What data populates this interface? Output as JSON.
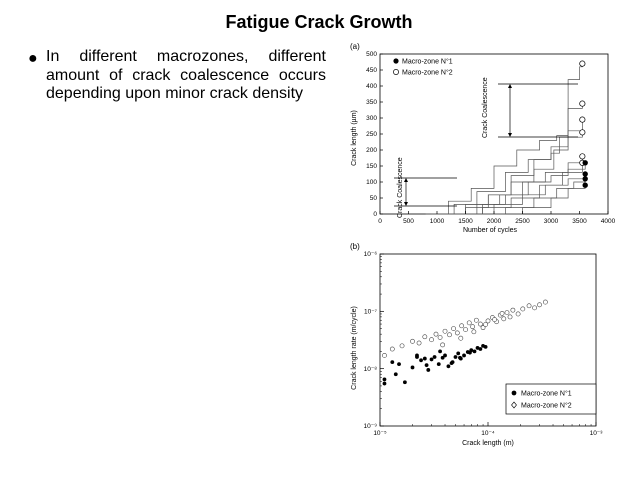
{
  "slide": {
    "title": "Fatigue Crack Growth",
    "bullet": "In different macrozones, different amount of crack coalescence occurs depending upon minor crack density"
  },
  "chart_data": [
    {
      "panel_label": "(a)",
      "type": "line",
      "xlabel": "Number of cycles",
      "ylabel": "Crack length (µm)",
      "xlim": [
        0,
        4000
      ],
      "ylim": [
        0,
        500
      ],
      "xticks": [
        "0",
        "500",
        "1000",
        "1500",
        "2000",
        "2500",
        "3000",
        "3500",
        "4000"
      ],
      "yticks": [
        "0",
        "50",
        "100",
        "150",
        "200",
        "250",
        "300",
        "350",
        "400",
        "450",
        "500"
      ],
      "legend": [
        {
          "label": "Macro-zone N°1",
          "marker": "filled-circle"
        },
        {
          "label": "Macro-zone N°2",
          "marker": "open-circle"
        }
      ],
      "annotations": [
        "Crack Coalescence",
        "Crack Coalescence"
      ],
      "series": [
        {
          "marker": "open",
          "x": [
            1100,
            1500,
            1900,
            2300,
            2700,
            3000,
            3150,
            3300,
            3500,
            3550
          ],
          "y": [
            0,
            30,
            60,
            120,
            170,
            190,
            240,
            420,
            460,
            470
          ]
        },
        {
          "marker": "open",
          "x": [
            800,
            1200,
            1600,
            2000,
            2400,
            2800,
            3100,
            3300,
            3550
          ],
          "y": [
            0,
            40,
            80,
            150,
            200,
            230,
            245,
            330,
            345
          ]
        },
        {
          "marker": "open",
          "x": [
            1000,
            1500,
            1900,
            2300,
            2700,
            3050,
            3300,
            3550
          ],
          "y": [
            0,
            20,
            60,
            100,
            140,
            200,
            260,
            295
          ]
        },
        {
          "marker": "open",
          "x": [
            900,
            1300,
            1700,
            2200,
            2600,
            3000,
            3300,
            3550
          ],
          "y": [
            0,
            30,
            70,
            130,
            170,
            210,
            240,
            255
          ]
        },
        {
          "marker": "open",
          "x": [
            1200,
            1700,
            2100,
            2500,
            2900,
            3300,
            3550
          ],
          "y": [
            0,
            30,
            60,
            100,
            130,
            160,
            180
          ]
        },
        {
          "marker": "open",
          "x": [
            1400,
            1800,
            2300,
            2800,
            3200,
            3550
          ],
          "y": [
            0,
            20,
            50,
            90,
            130,
            160
          ]
        },
        {
          "marker": "filled",
          "x": [
            1300,
            1800,
            2200,
            2600,
            3000,
            3300,
            3600
          ],
          "y": [
            0,
            30,
            60,
            100,
            120,
            140,
            160
          ]
        },
        {
          "marker": "filled",
          "x": [
            1500,
            2000,
            2500,
            2900,
            3300,
            3600
          ],
          "y": [
            0,
            30,
            60,
            90,
            110,
            125
          ]
        },
        {
          "marker": "filled",
          "x": [
            1700,
            2200,
            2700,
            3100,
            3400,
            3600
          ],
          "y": [
            0,
            20,
            50,
            80,
            100,
            110
          ]
        },
        {
          "marker": "filled",
          "x": [
            2000,
            2500,
            3000,
            3300,
            3600
          ],
          "y": [
            0,
            20,
            50,
            80,
            90
          ]
        }
      ]
    },
    {
      "panel_label": "(b)",
      "type": "scatter",
      "xlabel": "Crack length (m)",
      "ylabel": "Crack length rate (m/cycle)",
      "x_scale": "log",
      "y_scale": "log",
      "xlim": [
        1e-05,
        0.001
      ],
      "ylim": [
        1e-09,
        1e-06
      ],
      "xticks": [
        "10⁻⁵",
        "10⁻⁴",
        "10⁻³"
      ],
      "yticks": [
        "10⁻⁹",
        "10⁻⁸",
        "10⁻⁷",
        "10⁻⁶"
      ],
      "legend": [
        {
          "label": "Macro-zone N°1",
          "marker": "filled-circle"
        },
        {
          "label": "Macro-zone N°2",
          "marker": "open-diamond"
        }
      ],
      "series": [
        {
          "name": "Macro-zone N°1",
          "marker": "filled",
          "x": [
            1.1e-05,
            1.1e-05,
            1.3e-05,
            1.4e-05,
            1.5e-05,
            1.7e-05,
            2e-05,
            2.2e-05,
            2.4e-05,
            2.6e-05,
            2.8e-05,
            3e-05,
            3.2e-05,
            3.5e-05,
            3.8e-05,
            4e-05,
            4.3e-05,
            4.7e-05,
            5e-05,
            5.3e-05,
            5.6e-05,
            6e-05,
            6.5e-05,
            7e-05,
            7.5e-05,
            8e-05,
            8.5e-05,
            9e-05,
            9.5e-05,
            2.2e-05,
            2.7e-05,
            3.6e-05,
            4.6e-05,
            5.5e-05,
            6.8e-05
          ],
          "y": [
            6.5e-09,
            5.5e-09,
            1.3e-08,
            8e-09,
            1.2e-08,
            5.8e-09,
            1.05e-08,
            1.6e-08,
            1.4e-08,
            1.5e-08,
            9.5e-09,
            1.45e-08,
            1.6e-08,
            1.2e-08,
            1.55e-08,
            1.7e-08,
            1.1e-08,
            1.3e-08,
            1.6e-08,
            1.85e-08,
            1.5e-08,
            1.7e-08,
            1.95e-08,
            2.1e-08,
            2e-08,
            2.3e-08,
            2.2e-08,
            2.5e-08,
            2.4e-08,
            1.7e-08,
            1.15e-08,
            2e-08,
            1.25e-08,
            1.55e-08,
            1.9e-08
          ]
        },
        {
          "name": "Macro-zone N°2",
          "marker": "open",
          "x": [
            1.1e-05,
            1.3e-05,
            1.6e-05,
            2e-05,
            2.3e-05,
            2.6e-05,
            3e-05,
            3.3e-05,
            3.6e-05,
            4e-05,
            4.4e-05,
            4.8e-05,
            5.2e-05,
            5.7e-05,
            6.2e-05,
            6.7e-05,
            7.2e-05,
            7.8e-05,
            8.5e-05,
            9e-05,
            0.0001,
            0.00011,
            0.00012,
            0.00013,
            0.00014,
            0.00015,
            0.00016,
            0.00017,
            0.00019,
            0.00021,
            0.00024,
            0.00027,
            0.0003,
            0.00034,
            3.8e-05,
            5.6e-05,
            7.4e-05,
            9.5e-05,
            0.000115,
            0.000135
          ],
          "y": [
            1.7e-08,
            2.2e-08,
            2.5e-08,
            3e-08,
            2.8e-08,
            3.6e-08,
            3.2e-08,
            4e-08,
            3.5e-08,
            4.5e-08,
            3.9e-08,
            5e-08,
            4.2e-08,
            5.6e-08,
            4.8e-08,
            6.3e-08,
            5.4e-08,
            7e-08,
            6e-08,
            5.2e-08,
            6.8e-08,
            7.8e-08,
            6.6e-08,
            8.6e-08,
            7.4e-08,
            9.5e-08,
            8e-08,
            1.05e-07,
            9e-08,
            1.1e-07,
            1.25e-07,
            1.15e-07,
            1.3e-07,
            1.45e-07,
            2.6e-08,
            3.4e-08,
            4.4e-08,
            5.9e-08,
            7.2e-08,
            9.2e-08
          ]
        }
      ]
    }
  ]
}
